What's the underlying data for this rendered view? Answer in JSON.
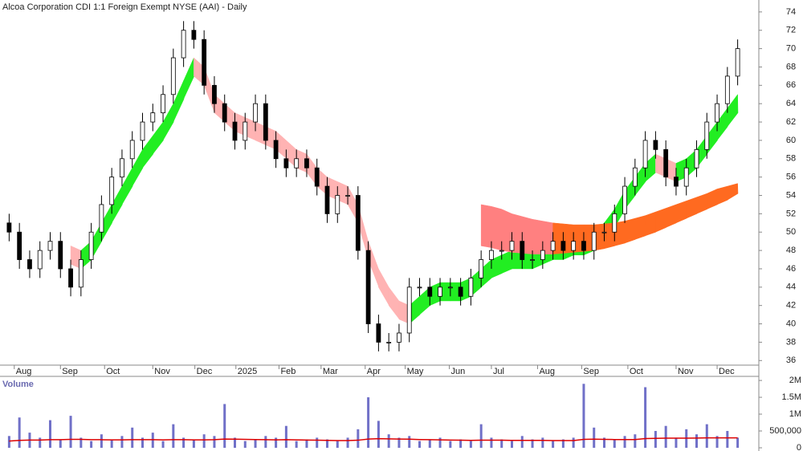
{
  "chart_data": {
    "type": "candlestick",
    "title": "Alcoa Corporation CDI 1:1 Foreign Exempt NYSE (AAI) - Daily",
    "xlim": [
      0,
      72
    ],
    "xticks": [
      {
        "value": 1.0,
        "label": "Aug"
      },
      {
        "value": 5.5,
        "label": "Sep"
      },
      {
        "value": 9.8,
        "label": "Oct"
      },
      {
        "value": 14.5,
        "label": "Nov"
      },
      {
        "value": 18.6,
        "label": "Dec"
      },
      {
        "value": 22.6,
        "label": "2025"
      },
      {
        "value": 26.8,
        "label": "Feb"
      },
      {
        "value": 30.9,
        "label": "Mar"
      },
      {
        "value": 35.2,
        "label": "Apr"
      },
      {
        "value": 39.1,
        "label": "May"
      },
      {
        "value": 43.4,
        "label": "Jun"
      },
      {
        "value": 47.5,
        "label": "Jul"
      },
      {
        "value": 52.0,
        "label": "Aug"
      },
      {
        "value": 56.3,
        "label": "Sep"
      },
      {
        "value": 60.8,
        "label": "Oct"
      },
      {
        "value": 65.5,
        "label": "Nov"
      },
      {
        "value": 69.5,
        "label": "Dec"
      }
    ],
    "ylim": [
      35.5,
      75.3
    ],
    "yticks": [
      36,
      38,
      40,
      42,
      44,
      46,
      48,
      50,
      52,
      54,
      56,
      58,
      60,
      62,
      64,
      66,
      68,
      70,
      72,
      74
    ],
    "up_color": "#ffffff",
    "down_color": "#000000",
    "open": [
      51,
      50,
      47,
      46,
      48,
      49,
      46,
      44,
      47,
      50,
      53,
      56,
      58,
      60,
      62,
      63,
      65,
      69,
      72,
      71,
      66,
      64,
      62,
      60,
      62,
      64,
      60,
      58,
      57,
      58,
      57,
      55,
      52,
      54,
      54,
      48,
      40,
      38,
      38,
      39,
      44,
      44,
      43,
      44,
      44,
      43,
      45,
      47,
      48,
      48,
      49,
      47,
      47,
      48,
      49,
      48,
      49,
      48,
      50,
      50,
      52,
      55,
      57,
      60,
      59,
      56,
      55,
      57,
      59,
      62,
      64,
      67
    ],
    "high": [
      52,
      51,
      48,
      49,
      50,
      50,
      47,
      48,
      51,
      54,
      57,
      59,
      61,
      63,
      64,
      66,
      70,
      73,
      73,
      72,
      67,
      65,
      63,
      63,
      65,
      65,
      61,
      59,
      59,
      59,
      58,
      56,
      55,
      55,
      55,
      49,
      41,
      39,
      40,
      45,
      45,
      45,
      45,
      45,
      45,
      46,
      48,
      49,
      49,
      50,
      50,
      48,
      49,
      50,
      50,
      50,
      50,
      51,
      51,
      53,
      56,
      58,
      61,
      61,
      60,
      57,
      58,
      60,
      63,
      65,
      68,
      71
    ],
    "low": [
      49,
      46,
      45,
      45,
      47,
      45,
      43,
      43,
      46,
      49,
      52,
      55,
      57,
      59,
      61,
      62,
      64,
      68,
      70,
      65,
      63,
      61,
      59,
      59,
      61,
      59,
      57,
      56,
      56,
      56,
      54,
      51,
      51,
      53,
      47,
      39,
      37,
      37,
      37,
      38,
      43,
      42,
      42,
      43,
      42,
      42,
      44,
      46,
      47,
      47,
      46,
      46,
      46,
      47,
      47,
      47,
      47,
      47,
      49,
      49,
      51,
      54,
      56,
      58,
      55,
      54,
      54,
      56,
      58,
      61,
      63,
      66
    ],
    "close": [
      50,
      47,
      46,
      48,
      49,
      46,
      44,
      47,
      50,
      53,
      56,
      58,
      60,
      62,
      63,
      65,
      69,
      72,
      71,
      66,
      64,
      62,
      60,
      62,
      64,
      60,
      58,
      57,
      58,
      57,
      55,
      52,
      54,
      54,
      48,
      40,
      38,
      38,
      39,
      44,
      44,
      43,
      44,
      44,
      43,
      45,
      47,
      48,
      48,
      49,
      47,
      47,
      48,
      49,
      48,
      49,
      48,
      50,
      50,
      52,
      55,
      57,
      60,
      59,
      56,
      55,
      57,
      59,
      62,
      64,
      67,
      70
    ],
    "bands": [
      {
        "rising_color": "#22ee22",
        "falling_color": "#ffb3b3",
        "upper": [
          null,
          null,
          null,
          null,
          null,
          null,
          48.5,
          48,
          49,
          51,
          53,
          55,
          57,
          59,
          60.5,
          62,
          64,
          66.5,
          69,
          68,
          65,
          64,
          63,
          62.5,
          62,
          61.5,
          61,
          60,
          59,
          58.5,
          57,
          56,
          55.5,
          55,
          53,
          49,
          46,
          44,
          42.5,
          42,
          43,
          44,
          44.5,
          44.5,
          44.5,
          45,
          46,
          47,
          47.5,
          48,
          48,
          48,
          48.5,
          49,
          49,
          49.5,
          49.5,
          50,
          51,
          52.5,
          54.5,
          56,
          57.5,
          58.5,
          58,
          57.5,
          58,
          59,
          60.5,
          62,
          63.5,
          65
        ],
        "lower": [
          null,
          null,
          null,
          null,
          null,
          null,
          46.5,
          46,
          47,
          49,
          51,
          53,
          55,
          57,
          58.5,
          60,
          62,
          64.5,
          67,
          66,
          63,
          62,
          61,
          60.5,
          60,
          59.5,
          59,
          58,
          57,
          56.5,
          55,
          54,
          53.5,
          53,
          51,
          47,
          44,
          42,
          40.5,
          40,
          41,
          42,
          42.5,
          42.5,
          42.5,
          43,
          44,
          45,
          45.5,
          46,
          46,
          46,
          46.5,
          47,
          47,
          47.5,
          47.5,
          48,
          49,
          50.5,
          52.5,
          54,
          55.5,
          56.5,
          56,
          55.5,
          56,
          57,
          58.5,
          60,
          61.5,
          63
        ]
      },
      {
        "rising_color": "#ff6a20",
        "falling_color": "#ff8080",
        "upper": [
          null,
          null,
          null,
          null,
          null,
          null,
          null,
          null,
          null,
          null,
          null,
          null,
          null,
          null,
          null,
          null,
          null,
          null,
          null,
          null,
          null,
          null,
          null,
          null,
          null,
          null,
          null,
          null,
          null,
          null,
          null,
          null,
          null,
          null,
          null,
          null,
          null,
          null,
          null,
          null,
          null,
          null,
          null,
          null,
          null,
          null,
          53,
          52.8,
          52.5,
          52,
          51.7,
          51.4,
          51.2,
          51,
          50.9,
          50.8,
          50.8,
          50.8,
          50.9,
          51,
          51.2,
          51.5,
          51.8,
          52.2,
          52.6,
          53,
          53.4,
          53.8,
          54.2,
          54.7,
          55,
          55.3
        ],
        "lower": [
          null,
          null,
          null,
          null,
          null,
          null,
          null,
          null,
          null,
          null,
          null,
          null,
          null,
          null,
          null,
          null,
          null,
          null,
          null,
          null,
          null,
          null,
          null,
          null,
          null,
          null,
          null,
          null,
          null,
          null,
          null,
          null,
          null,
          null,
          null,
          null,
          null,
          null,
          null,
          null,
          null,
          null,
          null,
          null,
          null,
          null,
          48.5,
          48.3,
          48,
          47.8,
          47.7,
          47.6,
          47.6,
          47.6,
          47.7,
          47.8,
          47.9,
          48,
          48.2,
          48.5,
          48.8,
          49.2,
          49.6,
          50,
          50.5,
          51,
          51.5,
          52,
          52.5,
          53,
          53.5,
          54.2
        ]
      }
    ],
    "volume": {
      "title": "Volume",
      "color": "#7070c8",
      "average_color": "#dd0000",
      "ylim": [
        0,
        2050000
      ],
      "yticks": [
        0,
        {
          "value": 500000,
          "label": "500,000"
        },
        {
          "value": 1000000,
          "label": "1M"
        },
        {
          "value": 1500000,
          "label": "1.5M"
        },
        {
          "value": 2000000,
          "label": "2M"
        }
      ],
      "values": [
        350000,
        900000,
        450000,
        300000,
        820000,
        250000,
        950000,
        300000,
        200000,
        400000,
        250000,
        350000,
        600000,
        300000,
        450000,
        200000,
        700000,
        300000,
        250000,
        400000,
        350000,
        1300000,
        300000,
        200000,
        250000,
        350000,
        300000,
        650000,
        200000,
        250000,
        300000,
        250000,
        200000,
        300000,
        550000,
        1500000,
        800000,
        400000,
        300000,
        350000,
        200000,
        250000,
        300000,
        200000,
        250000,
        200000,
        700000,
        300000,
        250000,
        200000,
        350000,
        250000,
        300000,
        200000,
        250000,
        300000,
        1900000,
        600000,
        300000,
        250000,
        350000,
        400000,
        1800000,
        500000,
        650000,
        300000,
        550000,
        400000,
        700000,
        350000,
        500000,
        300000
      ],
      "average": [
        200000,
        220000,
        230000,
        230000,
        240000,
        240000,
        250000,
        250000,
        240000,
        240000,
        235000,
        235000,
        240000,
        240000,
        240000,
        235000,
        240000,
        240000,
        235000,
        235000,
        240000,
        260000,
        255000,
        250000,
        245000,
        240000,
        235000,
        240000,
        235000,
        230000,
        225000,
        220000,
        215000,
        215000,
        225000,
        260000,
        270000,
        265000,
        260000,
        255000,
        245000,
        240000,
        235000,
        230000,
        225000,
        220000,
        225000,
        225000,
        225000,
        220000,
        220000,
        220000,
        220000,
        215000,
        215000,
        215000,
        250000,
        255000,
        250000,
        245000,
        245000,
        245000,
        275000,
        280000,
        285000,
        285000,
        285000,
        290000,
        295000,
        295000,
        295000,
        295000
      ]
    }
  }
}
